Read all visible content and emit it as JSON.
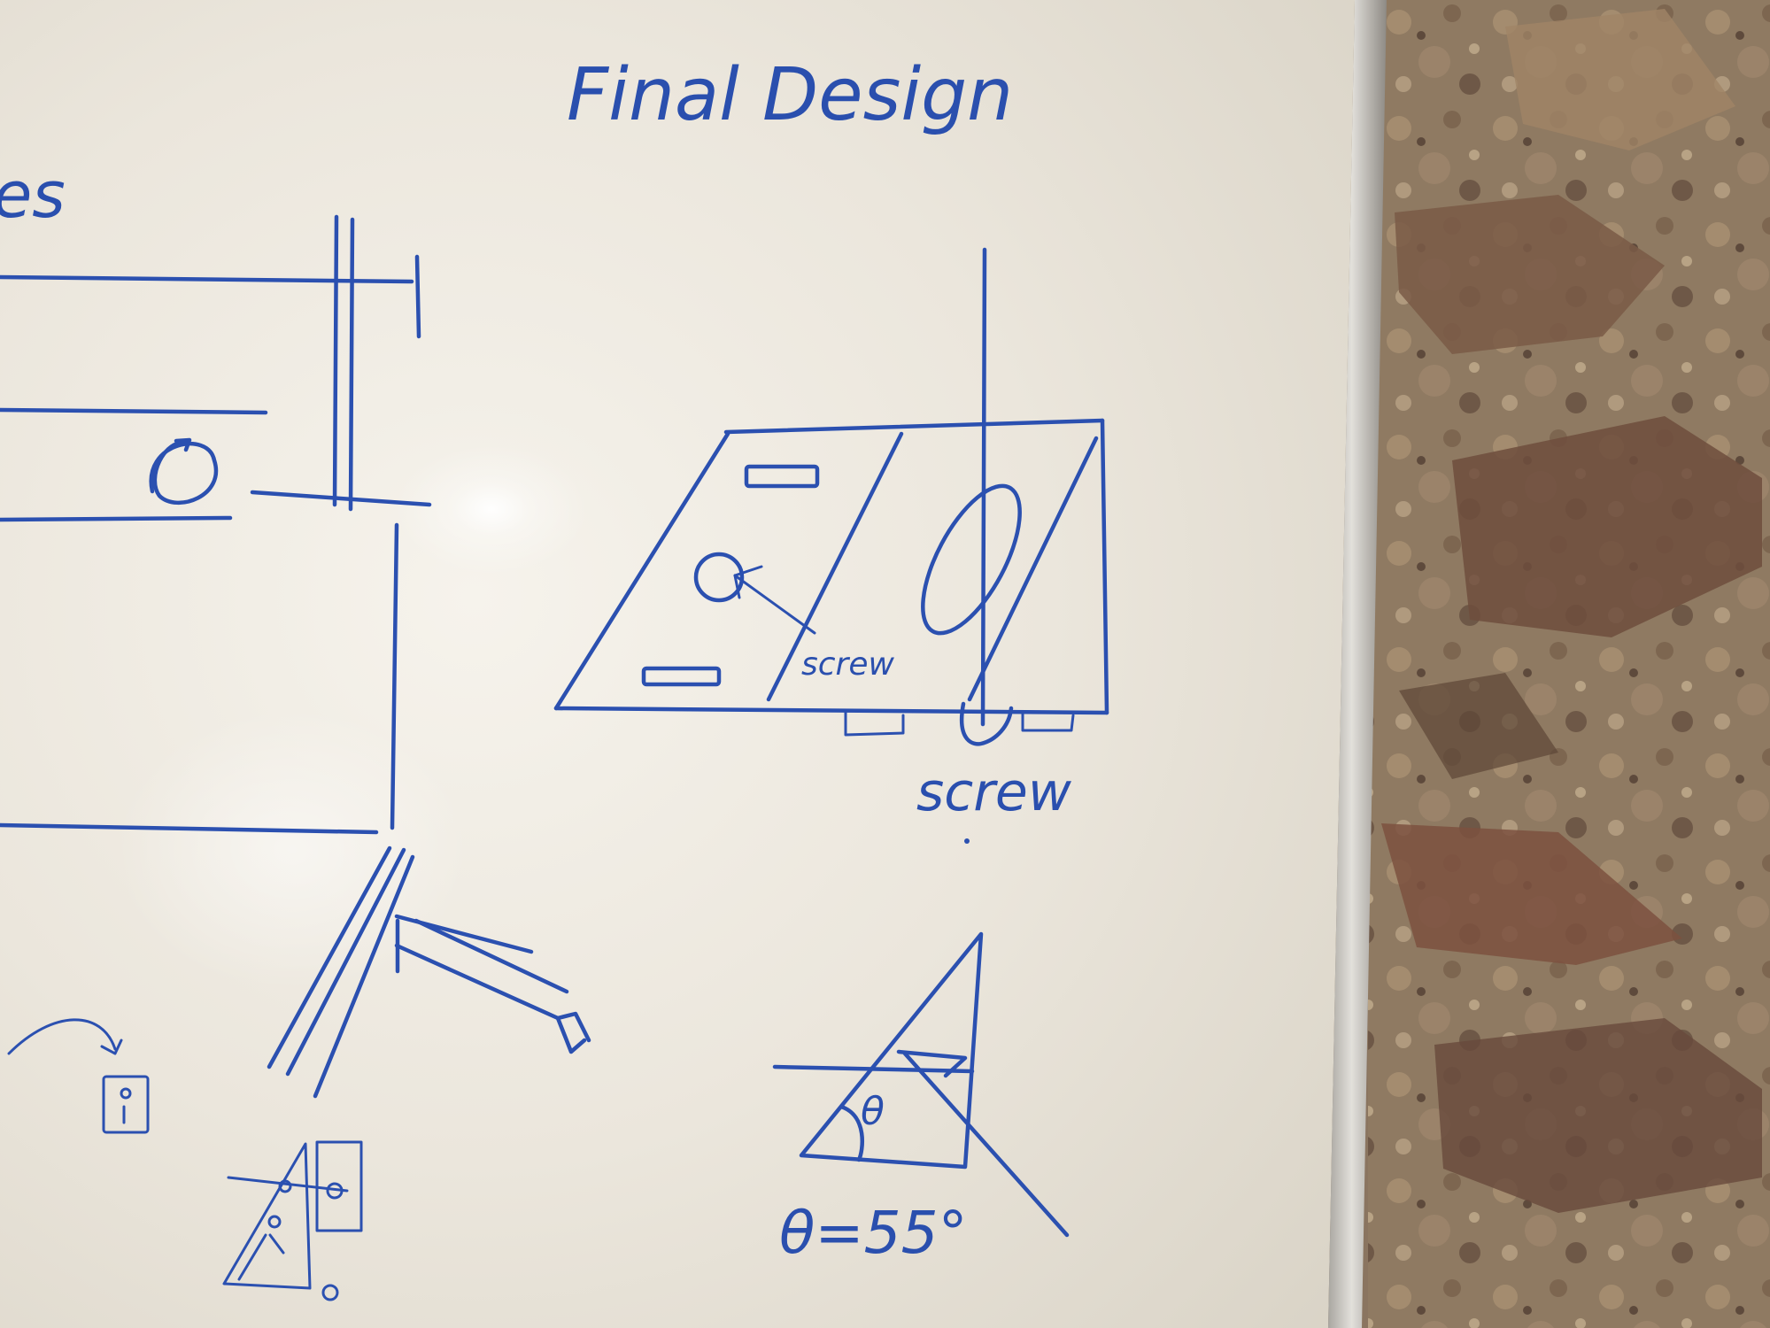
{
  "whiteboard": {
    "title": "Final Design",
    "partial_left_word": "es",
    "label_screw_inner": "screw",
    "label_screw_bottom": "screw",
    "angle_symbol": "θ",
    "angle_equation": "θ=55°"
  },
  "colors": {
    "marker_ink": "#2b50b0",
    "board": "#ece8df",
    "frame": "#c9c6c0",
    "wall": "#8a7560"
  }
}
